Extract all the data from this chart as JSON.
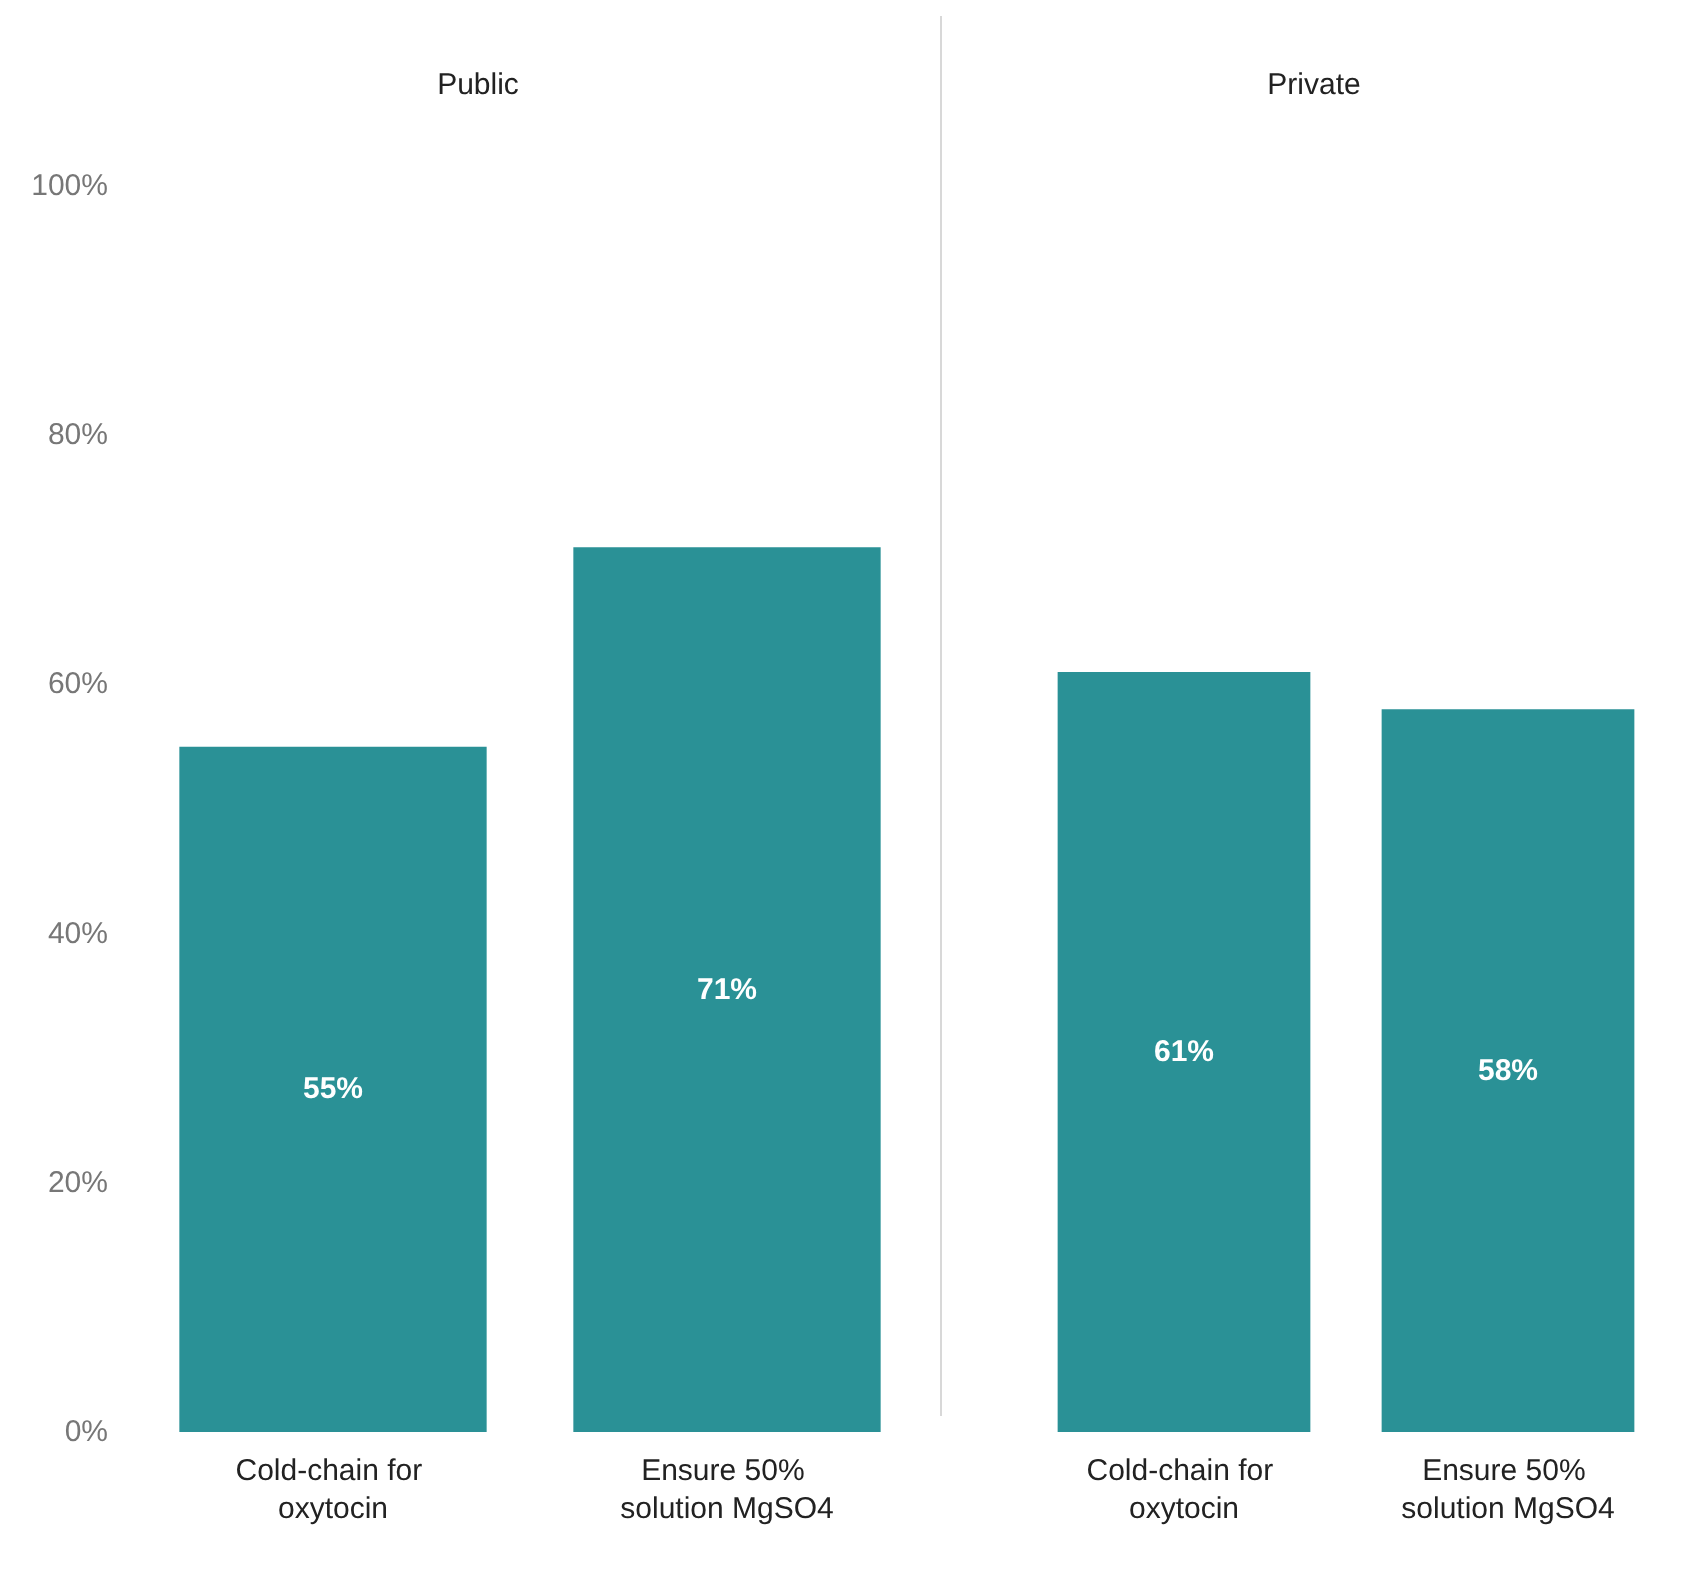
{
  "chart_data": [
    {
      "type": "bar",
      "title": "Public",
      "categories": [
        "Cold-chain for oxytocin",
        "Ensure 50% solution MgSO4"
      ],
      "series": [
        {
          "color": "#2a9196",
          "values": [
            55,
            71
          ],
          "value_labels": [
            "55%",
            "71%"
          ]
        }
      ],
      "ylim": [
        0,
        100
      ],
      "yticks": [
        {
          "value": 0,
          "label": "0%"
        },
        {
          "value": 20,
          "label": "20%"
        },
        {
          "value": 40,
          "label": "40%"
        },
        {
          "value": 60,
          "label": "60%"
        },
        {
          "value": 80,
          "label": "80%"
        },
        {
          "value": 100,
          "label": "100%"
        }
      ],
      "grid": false
    },
    {
      "type": "bar",
      "title": "Private",
      "categories": [
        "Cold-chain for oxytocin",
        "Ensure 50% solution MgSO4"
      ],
      "series": [
        {
          "color": "#2a9196",
          "values": [
            61,
            58
          ],
          "value_labels": [
            "61%",
            "58%"
          ]
        }
      ],
      "ylim": [
        0,
        100
      ],
      "grid": false,
      "tick_labels": "x"
    }
  ]
}
